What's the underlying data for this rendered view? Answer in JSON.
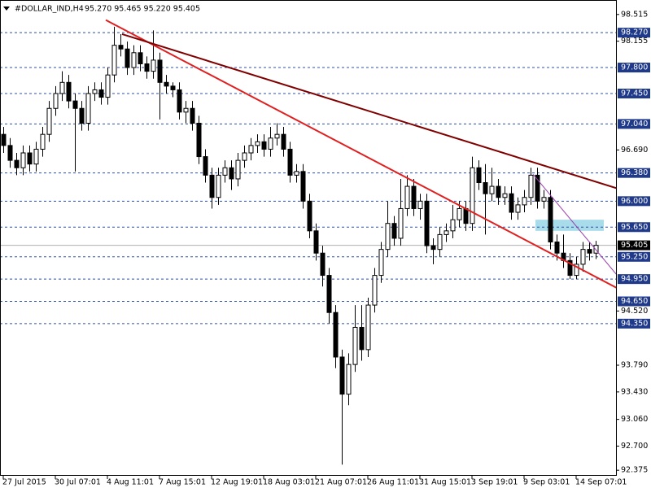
{
  "chart_data": {
    "type": "candlestick",
    "title": "#DOLLAR_IND,H4",
    "last_bar": "95.270 95.465 95.220 95.405",
    "categories": [
      "27 Jul 2015",
      null,
      null,
      null,
      null,
      null,
      null,
      null,
      "30 Jul 07:01",
      null,
      null,
      null,
      null,
      null,
      null,
      null,
      "4 Aug 11:01",
      null,
      null,
      null,
      null,
      null,
      null,
      null,
      "7 Aug 15:01",
      null,
      null,
      null,
      null,
      null,
      null,
      null,
      "12 Aug 19:01",
      null,
      null,
      null,
      null,
      null,
      null,
      null,
      "18 Aug 03:01",
      null,
      null,
      null,
      null,
      null,
      null,
      null,
      "21 Aug 07:01",
      null,
      null,
      null,
      null,
      null,
      null,
      null,
      "26 Aug 11:01",
      null,
      null,
      null,
      null,
      null,
      null,
      null,
      "31 Aug 15:01",
      null,
      null,
      null,
      null,
      null,
      null,
      null,
      "3 Sep 19:01",
      null,
      null,
      null,
      null,
      null,
      null,
      null,
      "9 Sep 03:01",
      null,
      null,
      null,
      null,
      null,
      null,
      null,
      "14 Sep 07:01",
      null,
      null,
      null
    ],
    "open": [
      96.9,
      96.75,
      96.55,
      96.45,
      96.65,
      96.5,
      96.7,
      96.9,
      97.25,
      97.45,
      97.6,
      97.35,
      97.25,
      97.05,
      97.45,
      97.5,
      97.4,
      97.7,
      98.1,
      98.05,
      97.8,
      98.0,
      97.85,
      97.75,
      97.9,
      97.6,
      97.55,
      97.5,
      97.2,
      97.25,
      97.05,
      96.6,
      96.35,
      96.05,
      96.35,
      96.45,
      96.3,
      96.55,
      96.65,
      96.75,
      96.8,
      96.7,
      96.85,
      96.9,
      96.7,
      96.35,
      96.4,
      96.0,
      95.6,
      95.3,
      95.0,
      94.5,
      93.9,
      93.4,
      93.8,
      94.3,
      94.0,
      94.6,
      95.0,
      95.35,
      95.7,
      95.5,
      95.9,
      96.2,
      95.9,
      96.0,
      95.4,
      95.35,
      95.55,
      95.6,
      95.75,
      95.9,
      95.7,
      96.45,
      96.25,
      96.1,
      96.2,
      96.05,
      96.1,
      95.85,
      95.95,
      96.05,
      96.35,
      96.0,
      96.05,
      95.45,
      95.3,
      95.2,
      95.0,
      95.15,
      95.35,
      95.3
    ],
    "high": [
      97.0,
      96.85,
      96.65,
      96.75,
      96.75,
      96.8,
      97.0,
      97.35,
      97.55,
      97.75,
      97.7,
      97.45,
      97.35,
      97.55,
      97.6,
      97.6,
      97.8,
      98.35,
      98.25,
      98.15,
      98.1,
      98.1,
      97.95,
      98.3,
      98.0,
      97.7,
      97.6,
      97.6,
      97.35,
      97.35,
      97.15,
      96.7,
      96.45,
      96.45,
      96.55,
      96.55,
      96.65,
      96.75,
      96.85,
      96.9,
      96.9,
      97.0,
      97.05,
      97.0,
      96.8,
      96.5,
      96.5,
      96.1,
      95.7,
      95.4,
      95.1,
      94.6,
      94.0,
      93.95,
      94.6,
      94.6,
      94.7,
      95.1,
      95.45,
      96.0,
      95.8,
      96.3,
      96.35,
      96.3,
      96.1,
      96.1,
      95.5,
      95.65,
      95.7,
      95.95,
      96.0,
      96.0,
      96.6,
      96.55,
      96.5,
      96.45,
      96.3,
      96.2,
      96.2,
      96.05,
      96.15,
      96.45,
      96.45,
      96.15,
      96.15,
      95.55,
      95.55,
      95.3,
      95.25,
      95.45,
      95.45,
      95.465
    ],
    "low": [
      96.65,
      96.45,
      96.35,
      96.35,
      96.4,
      96.4,
      96.6,
      96.8,
      97.15,
      97.35,
      97.25,
      96.4,
      96.95,
      96.95,
      97.35,
      97.3,
      97.3,
      97.6,
      97.95,
      97.7,
      97.7,
      97.75,
      97.65,
      97.65,
      97.1,
      97.45,
      97.4,
      97.1,
      97.05,
      96.95,
      96.5,
      96.25,
      95.9,
      95.95,
      96.25,
      96.15,
      96.2,
      96.45,
      96.55,
      96.65,
      96.6,
      96.6,
      96.75,
      96.6,
      96.25,
      96.25,
      95.9,
      95.5,
      95.2,
      94.85,
      94.35,
      93.75,
      92.45,
      93.25,
      93.7,
      93.85,
      93.9,
      94.5,
      94.9,
      95.25,
      95.4,
      95.4,
      95.8,
      95.8,
      95.75,
      95.3,
      95.15,
      95.25,
      95.45,
      95.5,
      95.65,
      95.6,
      95.6,
      96.15,
      95.55,
      96.0,
      95.95,
      95.95,
      95.75,
      95.75,
      95.85,
      95.95,
      95.9,
      95.9,
      95.35,
      95.2,
      95.1,
      94.95,
      94.95,
      95.05,
      95.2,
      95.22
    ],
    "close": [
      96.75,
      96.55,
      96.45,
      96.65,
      96.5,
      96.7,
      96.9,
      97.25,
      97.45,
      97.6,
      97.35,
      97.25,
      97.05,
      97.45,
      97.5,
      97.4,
      97.7,
      98.1,
      98.05,
      97.8,
      98.0,
      97.85,
      97.75,
      97.9,
      97.6,
      97.55,
      97.5,
      97.2,
      97.25,
      97.05,
      96.6,
      96.35,
      96.05,
      96.35,
      96.45,
      96.3,
      96.55,
      96.65,
      96.75,
      96.8,
      96.7,
      96.85,
      96.9,
      96.7,
      96.35,
      96.4,
      96.0,
      95.6,
      95.3,
      95.0,
      94.5,
      93.9,
      93.4,
      93.8,
      94.3,
      94.0,
      94.6,
      95.0,
      95.35,
      95.7,
      95.5,
      95.9,
      96.2,
      95.9,
      96.0,
      95.4,
      95.35,
      95.55,
      95.6,
      95.75,
      95.9,
      95.7,
      96.45,
      96.25,
      96.1,
      96.2,
      96.05,
      96.1,
      95.85,
      95.95,
      96.05,
      96.35,
      96.0,
      96.05,
      95.45,
      95.3,
      95.2,
      95.0,
      95.15,
      95.35,
      95.3,
      95.405
    ],
    "ylim": [
      92.3,
      98.71
    ],
    "yticks": [
      98.515,
      98.155,
      {
        "value": 96.69,
        "label": "96.690"
      },
      {
        "value": 94.52,
        "label": "94.520"
      },
      {
        "value": 93.79,
        "label": "93.790"
      },
      {
        "value": 93.43,
        "label": "93.430"
      },
      {
        "value": 93.06,
        "label": "93.060"
      },
      {
        "value": 92.7,
        "label": "92.700"
      },
      92.375
    ],
    "levels": [
      {
        "value": 98.27,
        "label": "98.270"
      },
      {
        "value": 97.8,
        "label": "97.800"
      },
      {
        "value": 97.45,
        "label": "97.450"
      },
      {
        "value": 97.04,
        "label": "97.040"
      },
      {
        "value": 96.38,
        "label": "96.380"
      },
      {
        "value": 96.0,
        "label": "96.000"
      },
      {
        "value": 95.65,
        "label": "95.650"
      },
      {
        "value": 95.25,
        "label": "95.250"
      },
      {
        "value": 94.95,
        "label": "94.950"
      },
      {
        "value": 94.65,
        "label": "94.650"
      },
      {
        "value": 94.35,
        "label": "94.350"
      }
    ],
    "level_color": "#1f3a8a",
    "bid": 95.405,
    "trendlines": [
      {
        "color": "#e02020",
        "x": [
          15.75,
          94.5
        ],
        "y": [
          98.44,
          94.82
        ]
      },
      {
        "color": "#800000",
        "x": [
          18.25,
          99.5
        ],
        "y": [
          98.25,
          96.03
        ]
      },
      {
        "color": "#9a3fb0",
        "x": [
          81.4,
          94.5
        ],
        "y": [
          96.36,
          94.98
        ]
      }
    ],
    "zone": {
      "color": "#a8dcea",
      "x": [
        81.75,
        92.25
      ],
      "y": [
        95.6,
        95.75
      ]
    }
  }
}
